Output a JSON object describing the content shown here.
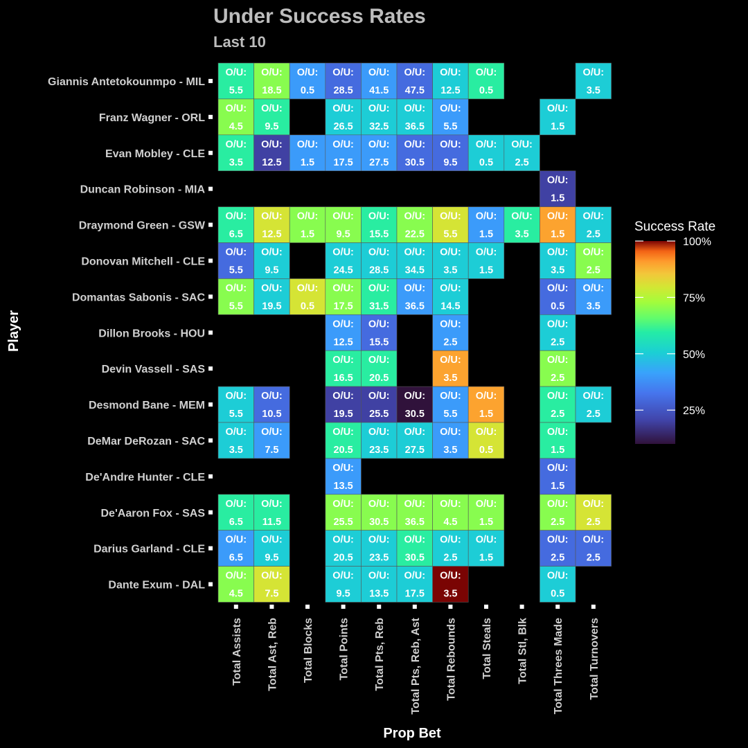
{
  "chart_data": {
    "type": "heatmap",
    "title": "Under Success Rates",
    "subtitle": "Last 10",
    "xlabel": "Prop Bet",
    "ylabel": "Player",
    "cell_prefix": "O/U:",
    "legend": {
      "title": "Success Rate",
      "ticks": [
        "25%",
        "50%",
        "75%",
        "100%"
      ],
      "tick_values": [
        0.25,
        0.5,
        0.75,
        1.0
      ],
      "range": [
        0.1,
        1.0
      ],
      "position": "right"
    },
    "categories_x": [
      "Total Assists",
      "Total Ast, Reb",
      "Total Blocks",
      "Total Points",
      "Total Pts, Reb",
      "Total Pts, Reb, Ast",
      "Total Rebounds",
      "Total Steals",
      "Total Stl, Blk",
      "Total Threes Made",
      "Total Turnovers"
    ],
    "categories_y": [
      "Giannis Antetokounmpo - MIL",
      "Franz Wagner - ORL",
      "Evan Mobley - CLE",
      "Duncan Robinson - MIA",
      "Draymond Green - GSW",
      "Donovan Mitchell - CLE",
      "Domantas Sabonis - SAC",
      "Dillon Brooks - HOU",
      "Devin Vassell - SAS",
      "Desmond Bane - MEM",
      "DeMar DeRozan - SAC",
      "De'Andre Hunter - CLE",
      "De'Aaron Fox - SAS",
      "Darius Garland - CLE",
      "Dante Exum - DAL"
    ],
    "cells": [
      {
        "player": 0,
        "prop": 0,
        "line": "5.5",
        "rate": 0.6
      },
      {
        "player": 0,
        "prop": 1,
        "line": "18.5",
        "rate": 0.7
      },
      {
        "player": 0,
        "prop": 2,
        "line": "0.5",
        "rate": 0.4
      },
      {
        "player": 0,
        "prop": 3,
        "line": "28.5",
        "rate": 0.3
      },
      {
        "player": 0,
        "prop": 4,
        "line": "41.5",
        "rate": 0.4
      },
      {
        "player": 0,
        "prop": 5,
        "line": "47.5",
        "rate": 0.3
      },
      {
        "player": 0,
        "prop": 6,
        "line": "12.5",
        "rate": 0.5
      },
      {
        "player": 0,
        "prop": 7,
        "line": "0.5",
        "rate": 0.6
      },
      {
        "player": 0,
        "prop": 10,
        "line": "3.5",
        "rate": 0.5
      },
      {
        "player": 1,
        "prop": 0,
        "line": "4.5",
        "rate": 0.7
      },
      {
        "player": 1,
        "prop": 1,
        "line": "9.5",
        "rate": 0.6
      },
      {
        "player": 1,
        "prop": 3,
        "line": "26.5",
        "rate": 0.5
      },
      {
        "player": 1,
        "prop": 4,
        "line": "32.5",
        "rate": 0.5
      },
      {
        "player": 1,
        "prop": 5,
        "line": "36.5",
        "rate": 0.5
      },
      {
        "player": 1,
        "prop": 6,
        "line": "5.5",
        "rate": 0.4
      },
      {
        "player": 1,
        "prop": 9,
        "line": "1.5",
        "rate": 0.5
      },
      {
        "player": 2,
        "prop": 0,
        "line": "3.5",
        "rate": 0.6
      },
      {
        "player": 2,
        "prop": 1,
        "line": "12.5",
        "rate": 0.2
      },
      {
        "player": 2,
        "prop": 2,
        "line": "1.5",
        "rate": 0.4
      },
      {
        "player": 2,
        "prop": 3,
        "line": "17.5",
        "rate": 0.4
      },
      {
        "player": 2,
        "prop": 4,
        "line": "27.5",
        "rate": 0.4
      },
      {
        "player": 2,
        "prop": 5,
        "line": "30.5",
        "rate": 0.3
      },
      {
        "player": 2,
        "prop": 6,
        "line": "9.5",
        "rate": 0.3
      },
      {
        "player": 2,
        "prop": 7,
        "line": "0.5",
        "rate": 0.5
      },
      {
        "player": 2,
        "prop": 8,
        "line": "2.5",
        "rate": 0.5
      },
      {
        "player": 3,
        "prop": 9,
        "line": "1.5",
        "rate": 0.2
      },
      {
        "player": 4,
        "prop": 0,
        "line": "6.5",
        "rate": 0.6
      },
      {
        "player": 4,
        "prop": 1,
        "line": "12.5",
        "rate": 0.8
      },
      {
        "player": 4,
        "prop": 2,
        "line": "1.5",
        "rate": 0.7
      },
      {
        "player": 4,
        "prop": 3,
        "line": "9.5",
        "rate": 0.7
      },
      {
        "player": 4,
        "prop": 4,
        "line": "15.5",
        "rate": 0.6
      },
      {
        "player": 4,
        "prop": 5,
        "line": "22.5",
        "rate": 0.7
      },
      {
        "player": 4,
        "prop": 6,
        "line": "5.5",
        "rate": 0.8
      },
      {
        "player": 4,
        "prop": 7,
        "line": "1.5",
        "rate": 0.4
      },
      {
        "player": 4,
        "prop": 8,
        "line": "3.5",
        "rate": 0.6
      },
      {
        "player": 4,
        "prop": 9,
        "line": "1.5",
        "rate": 0.9
      },
      {
        "player": 4,
        "prop": 10,
        "line": "2.5",
        "rate": 0.5
      },
      {
        "player": 5,
        "prop": 0,
        "line": "5.5",
        "rate": 0.3
      },
      {
        "player": 5,
        "prop": 1,
        "line": "9.5",
        "rate": 0.5
      },
      {
        "player": 5,
        "prop": 3,
        "line": "24.5",
        "rate": 0.5
      },
      {
        "player": 5,
        "prop": 4,
        "line": "28.5",
        "rate": 0.5
      },
      {
        "player": 5,
        "prop": 5,
        "line": "34.5",
        "rate": 0.5
      },
      {
        "player": 5,
        "prop": 6,
        "line": "3.5",
        "rate": 0.5
      },
      {
        "player": 5,
        "prop": 7,
        "line": "1.5",
        "rate": 0.5
      },
      {
        "player": 5,
        "prop": 9,
        "line": "3.5",
        "rate": 0.5
      },
      {
        "player": 5,
        "prop": 10,
        "line": "2.5",
        "rate": 0.7
      },
      {
        "player": 6,
        "prop": 0,
        "line": "5.5",
        "rate": 0.7
      },
      {
        "player": 6,
        "prop": 1,
        "line": "19.5",
        "rate": 0.5
      },
      {
        "player": 6,
        "prop": 2,
        "line": "0.5",
        "rate": 0.8
      },
      {
        "player": 6,
        "prop": 3,
        "line": "17.5",
        "rate": 0.7
      },
      {
        "player": 6,
        "prop": 4,
        "line": "31.5",
        "rate": 0.6
      },
      {
        "player": 6,
        "prop": 5,
        "line": "36.5",
        "rate": 0.4
      },
      {
        "player": 6,
        "prop": 6,
        "line": "14.5",
        "rate": 0.5
      },
      {
        "player": 6,
        "prop": 9,
        "line": "0.5",
        "rate": 0.3
      },
      {
        "player": 6,
        "prop": 10,
        "line": "3.5",
        "rate": 0.4
      },
      {
        "player": 7,
        "prop": 3,
        "line": "12.5",
        "rate": 0.4
      },
      {
        "player": 7,
        "prop": 4,
        "line": "15.5",
        "rate": 0.3
      },
      {
        "player": 7,
        "prop": 6,
        "line": "2.5",
        "rate": 0.4
      },
      {
        "player": 7,
        "prop": 9,
        "line": "2.5",
        "rate": 0.5
      },
      {
        "player": 8,
        "prop": 3,
        "line": "16.5",
        "rate": 0.6
      },
      {
        "player": 8,
        "prop": 4,
        "line": "20.5",
        "rate": 0.6
      },
      {
        "player": 8,
        "prop": 6,
        "line": "3.5",
        "rate": 0.9
      },
      {
        "player": 8,
        "prop": 9,
        "line": "2.5",
        "rate": 0.7
      },
      {
        "player": 9,
        "prop": 0,
        "line": "5.5",
        "rate": 0.5
      },
      {
        "player": 9,
        "prop": 1,
        "line": "10.5",
        "rate": 0.3
      },
      {
        "player": 9,
        "prop": 3,
        "line": "19.5",
        "rate": 0.2
      },
      {
        "player": 9,
        "prop": 4,
        "line": "25.5",
        "rate": 0.2
      },
      {
        "player": 9,
        "prop": 5,
        "line": "30.5",
        "rate": 0.1
      },
      {
        "player": 9,
        "prop": 6,
        "line": "5.5",
        "rate": 0.4
      },
      {
        "player": 9,
        "prop": 7,
        "line": "1.5",
        "rate": 0.9
      },
      {
        "player": 9,
        "prop": 9,
        "line": "2.5",
        "rate": 0.6
      },
      {
        "player": 9,
        "prop": 10,
        "line": "2.5",
        "rate": 0.5
      },
      {
        "player": 10,
        "prop": 0,
        "line": "3.5",
        "rate": 0.5
      },
      {
        "player": 10,
        "prop": 1,
        "line": "7.5",
        "rate": 0.4
      },
      {
        "player": 10,
        "prop": 3,
        "line": "20.5",
        "rate": 0.6
      },
      {
        "player": 10,
        "prop": 4,
        "line": "23.5",
        "rate": 0.5
      },
      {
        "player": 10,
        "prop": 5,
        "line": "27.5",
        "rate": 0.5
      },
      {
        "player": 10,
        "prop": 6,
        "line": "3.5",
        "rate": 0.4
      },
      {
        "player": 10,
        "prop": 7,
        "line": "0.5",
        "rate": 0.8
      },
      {
        "player": 10,
        "prop": 9,
        "line": "1.5",
        "rate": 0.6
      },
      {
        "player": 11,
        "prop": 3,
        "line": "13.5",
        "rate": 0.4
      },
      {
        "player": 11,
        "prop": 9,
        "line": "1.5",
        "rate": 0.3
      },
      {
        "player": 12,
        "prop": 0,
        "line": "6.5",
        "rate": 0.6
      },
      {
        "player": 12,
        "prop": 1,
        "line": "11.5",
        "rate": 0.6
      },
      {
        "player": 12,
        "prop": 3,
        "line": "25.5",
        "rate": 0.7
      },
      {
        "player": 12,
        "prop": 4,
        "line": "30.5",
        "rate": 0.7
      },
      {
        "player": 12,
        "prop": 5,
        "line": "36.5",
        "rate": 0.7
      },
      {
        "player": 12,
        "prop": 6,
        "line": "4.5",
        "rate": 0.7
      },
      {
        "player": 12,
        "prop": 7,
        "line": "1.5",
        "rate": 0.7
      },
      {
        "player": 12,
        "prop": 9,
        "line": "2.5",
        "rate": 0.7
      },
      {
        "player": 12,
        "prop": 10,
        "line": "2.5",
        "rate": 0.8
      },
      {
        "player": 13,
        "prop": 0,
        "line": "6.5",
        "rate": 0.4
      },
      {
        "player": 13,
        "prop": 1,
        "line": "9.5",
        "rate": 0.5
      },
      {
        "player": 13,
        "prop": 3,
        "line": "20.5",
        "rate": 0.5
      },
      {
        "player": 13,
        "prop": 4,
        "line": "23.5",
        "rate": 0.5
      },
      {
        "player": 13,
        "prop": 5,
        "line": "30.5",
        "rate": 0.6
      },
      {
        "player": 13,
        "prop": 6,
        "line": "2.5",
        "rate": 0.5
      },
      {
        "player": 13,
        "prop": 7,
        "line": "1.5",
        "rate": 0.5
      },
      {
        "player": 13,
        "prop": 9,
        "line": "2.5",
        "rate": 0.3
      },
      {
        "player": 13,
        "prop": 10,
        "line": "2.5",
        "rate": 0.3
      },
      {
        "player": 14,
        "prop": 0,
        "line": "4.5",
        "rate": 0.7
      },
      {
        "player": 14,
        "prop": 1,
        "line": "7.5",
        "rate": 0.8
      },
      {
        "player": 14,
        "prop": 3,
        "line": "9.5",
        "rate": 0.5
      },
      {
        "player": 14,
        "prop": 4,
        "line": "13.5",
        "rate": 0.5
      },
      {
        "player": 14,
        "prop": 5,
        "line": "17.5",
        "rate": 0.5
      },
      {
        "player": 14,
        "prop": 6,
        "line": "3.5",
        "rate": 1.0
      },
      {
        "player": 14,
        "prop": 9,
        "line": "0.5",
        "rate": 0.5
      }
    ]
  }
}
